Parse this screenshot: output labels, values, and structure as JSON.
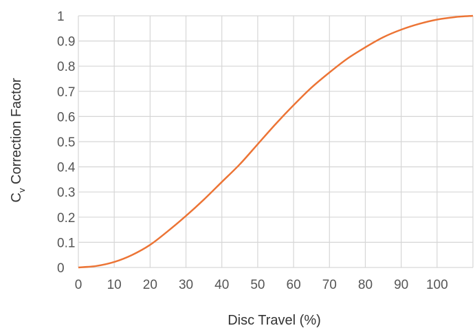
{
  "chart_data": {
    "type": "line",
    "title": "",
    "xlabel": "Disc Travel (%)",
    "ylabel_main": "C",
    "ylabel_sub": "v",
    "ylabel_rest": " Correction Factor",
    "xlim": [
      0,
      110
    ],
    "ylim": [
      0,
      1
    ],
    "xticks": [
      "0",
      "10",
      "20",
      "30",
      "40",
      "50",
      "60",
      "70",
      "80",
      "90",
      "100"
    ],
    "yticks": [
      "0",
      "0.1",
      "0.2",
      "0.3",
      "0.4",
      "0.5",
      "0.6",
      "0.7",
      "0.8",
      "0.9",
      "1"
    ],
    "grid": true,
    "series": [
      {
        "color": "#ec7435",
        "x": [
          0,
          5,
          10,
          15,
          20,
          25,
          30,
          35,
          40,
          45,
          50,
          55,
          60,
          65,
          70,
          75,
          80,
          85,
          90,
          95,
          100,
          105,
          110
        ],
        "y": [
          0.0,
          0.006,
          0.022,
          0.05,
          0.09,
          0.145,
          0.205,
          0.27,
          0.34,
          0.41,
          0.49,
          0.57,
          0.645,
          0.715,
          0.775,
          0.83,
          0.875,
          0.915,
          0.945,
          0.968,
          0.985,
          0.995,
          1.0
        ]
      }
    ]
  }
}
